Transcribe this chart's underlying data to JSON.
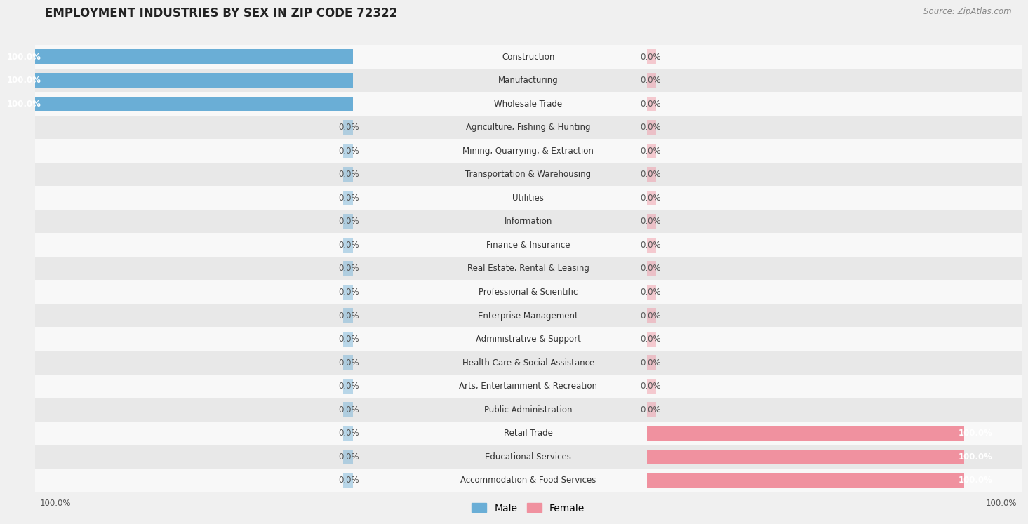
{
  "title": "EMPLOYMENT INDUSTRIES BY SEX IN ZIP CODE 72322",
  "source": "Source: ZipAtlas.com",
  "categories": [
    "Construction",
    "Manufacturing",
    "Wholesale Trade",
    "Agriculture, Fishing & Hunting",
    "Mining, Quarrying, & Extraction",
    "Transportation & Warehousing",
    "Utilities",
    "Information",
    "Finance & Insurance",
    "Real Estate, Rental & Leasing",
    "Professional & Scientific",
    "Enterprise Management",
    "Administrative & Support",
    "Health Care & Social Assistance",
    "Arts, Entertainment & Recreation",
    "Public Administration",
    "Retail Trade",
    "Educational Services",
    "Accommodation & Food Services"
  ],
  "male": [
    100.0,
    100.0,
    100.0,
    0.0,
    0.0,
    0.0,
    0.0,
    0.0,
    0.0,
    0.0,
    0.0,
    0.0,
    0.0,
    0.0,
    0.0,
    0.0,
    0.0,
    0.0,
    0.0
  ],
  "female": [
    0.0,
    0.0,
    0.0,
    0.0,
    0.0,
    0.0,
    0.0,
    0.0,
    0.0,
    0.0,
    0.0,
    0.0,
    0.0,
    0.0,
    0.0,
    0.0,
    100.0,
    100.0,
    100.0
  ],
  "male_color": "#6aaed6",
  "female_color": "#f0919f",
  "bg_color": "#f0f0f0",
  "row_bg_light": "#f8f8f8",
  "row_bg_dark": "#e8e8e8",
  "title_fontsize": 12,
  "bar_height": 0.62,
  "stub_val": 3.0,
  "max_val": 100.0
}
